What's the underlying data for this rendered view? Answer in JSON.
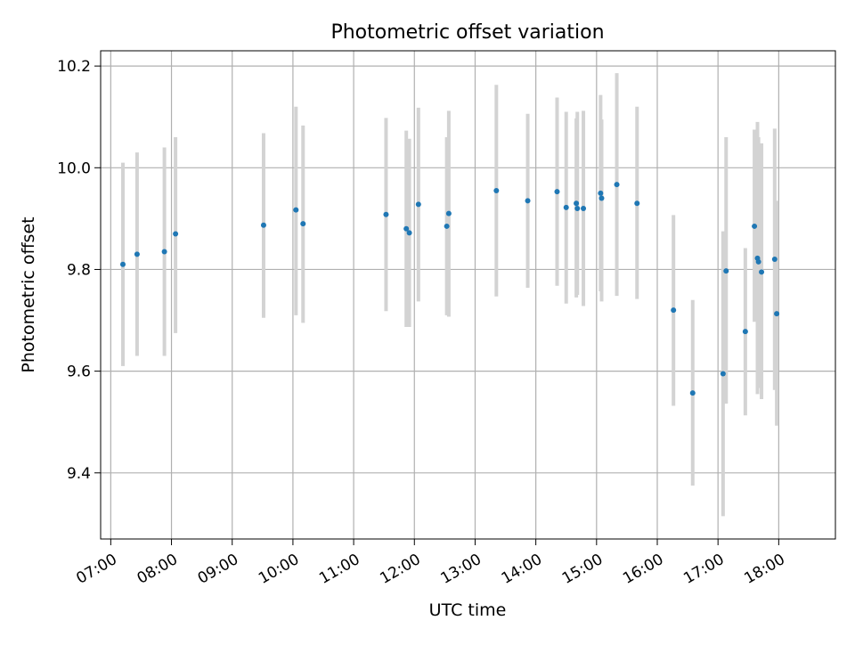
{
  "chart_data": {
    "type": "scatter",
    "title": "Photometric offset variation",
    "xlabel": "UTC time",
    "ylabel": "Photometric offset",
    "x_unit": "UTC time (HH:MM)",
    "xlim": [
      "06:50",
      "18:56"
    ],
    "ylim": [
      9.27,
      10.23
    ],
    "x_ticks": [
      "07:00",
      "08:00",
      "09:00",
      "10:00",
      "11:00",
      "12:00",
      "13:00",
      "14:00",
      "15:00",
      "16:00",
      "17:00",
      "18:00"
    ],
    "y_ticks": [
      9.4,
      9.6,
      9.8,
      10.0,
      10.2
    ],
    "y_tick_labels": [
      "9.4",
      "9.6",
      "9.8",
      "10.0",
      "10.2"
    ],
    "grid": true,
    "marker_color": "#1f77b4",
    "errorbar_color": "#d3d3d3",
    "points": [
      {
        "t": "07:12",
        "y": 9.81,
        "yerr_low": 9.61,
        "yerr_high": 10.01
      },
      {
        "t": "07:26",
        "y": 9.83,
        "yerr_low": 9.63,
        "yerr_high": 10.03
      },
      {
        "t": "07:53",
        "y": 9.835,
        "yerr_low": 9.63,
        "yerr_high": 10.04
      },
      {
        "t": "08:04",
        "y": 9.87,
        "yerr_low": 9.675,
        "yerr_high": 10.06
      },
      {
        "t": "09:31",
        "y": 9.887,
        "yerr_low": 9.705,
        "yerr_high": 10.068
      },
      {
        "t": "10:03",
        "y": 9.917,
        "yerr_low": 9.71,
        "yerr_high": 10.12
      },
      {
        "t": "10:10",
        "y": 9.89,
        "yerr_low": 9.695,
        "yerr_high": 10.083
      },
      {
        "t": "11:32",
        "y": 9.908,
        "yerr_low": 9.718,
        "yerr_high": 10.098
      },
      {
        "t": "11:52",
        "y": 9.88,
        "yerr_low": 9.687,
        "yerr_high": 10.073
      },
      {
        "t": "11:55",
        "y": 9.872,
        "yerr_low": 9.687,
        "yerr_high": 10.057
      },
      {
        "t": "12:04",
        "y": 9.928,
        "yerr_low": 9.737,
        "yerr_high": 10.118
      },
      {
        "t": "12:32",
        "y": 9.885,
        "yerr_low": 9.71,
        "yerr_high": 10.06
      },
      {
        "t": "12:34",
        "y": 9.91,
        "yerr_low": 9.707,
        "yerr_high": 10.112
      },
      {
        "t": "13:21",
        "y": 9.955,
        "yerr_low": 9.747,
        "yerr_high": 10.163
      },
      {
        "t": "13:52",
        "y": 9.935,
        "yerr_low": 9.764,
        "yerr_high": 10.106
      },
      {
        "t": "14:21",
        "y": 9.953,
        "yerr_low": 9.768,
        "yerr_high": 10.138
      },
      {
        "t": "14:30",
        "y": 9.922,
        "yerr_low": 9.733,
        "yerr_high": 10.11
      },
      {
        "t": "14:40",
        "y": 9.93,
        "yerr_low": 9.745,
        "yerr_high": 10.097
      },
      {
        "t": "14:41",
        "y": 9.92,
        "yerr_low": 9.75,
        "yerr_high": 10.11
      },
      {
        "t": "14:47",
        "y": 9.92,
        "yerr_low": 9.728,
        "yerr_high": 10.112
      },
      {
        "t": "15:04",
        "y": 9.95,
        "yerr_low": 9.757,
        "yerr_high": 10.143
      },
      {
        "t": "15:05",
        "y": 9.94,
        "yerr_low": 9.737,
        "yerr_high": 10.095
      },
      {
        "t": "15:20",
        "y": 9.967,
        "yerr_low": 9.748,
        "yerr_high": 10.186
      },
      {
        "t": "15:40",
        "y": 9.93,
        "yerr_low": 9.742,
        "yerr_high": 10.12
      },
      {
        "t": "16:16",
        "y": 9.72,
        "yerr_low": 9.532,
        "yerr_high": 9.907
      },
      {
        "t": "16:35",
        "y": 9.557,
        "yerr_low": 9.375,
        "yerr_high": 9.74
      },
      {
        "t": "17:05",
        "y": 9.595,
        "yerr_low": 9.315,
        "yerr_high": 9.875
      },
      {
        "t": "17:08",
        "y": 9.797,
        "yerr_low": 9.536,
        "yerr_high": 10.06
      },
      {
        "t": "17:27",
        "y": 9.678,
        "yerr_low": 9.513,
        "yerr_high": 9.842
      },
      {
        "t": "17:36",
        "y": 9.885,
        "yerr_low": 9.697,
        "yerr_high": 10.075
      },
      {
        "t": "17:39",
        "y": 9.822,
        "yerr_low": 9.555,
        "yerr_high": 10.09
      },
      {
        "t": "17:40",
        "y": 9.815,
        "yerr_low": 9.567,
        "yerr_high": 10.06
      },
      {
        "t": "17:43",
        "y": 9.795,
        "yerr_low": 9.545,
        "yerr_high": 10.048
      },
      {
        "t": "17:56",
        "y": 9.82,
        "yerr_low": 9.563,
        "yerr_high": 10.077
      },
      {
        "t": "17:58",
        "y": 9.713,
        "yerr_low": 9.493,
        "yerr_high": 9.935
      }
    ]
  }
}
